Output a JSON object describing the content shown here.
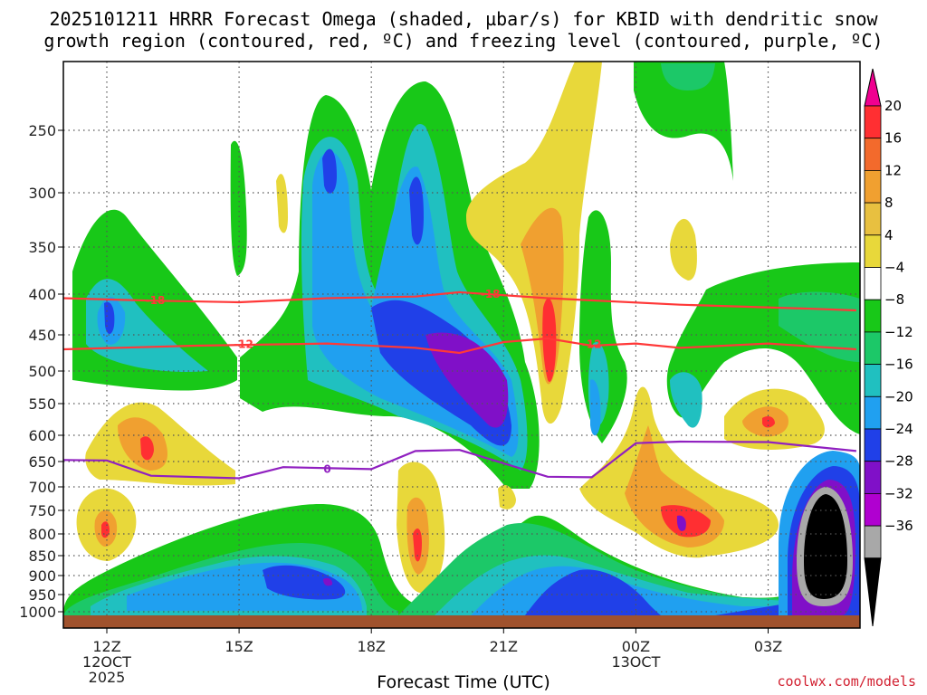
{
  "header": {
    "title_line1": "2025101211 HRRR Forecast Omega (shaded, µbar/s) for KBID with dendritic snow",
    "title_line2": "growth region (contoured, red, ºC) and freezing level (contoured, purple, ºC)"
  },
  "footer": {
    "credit": "coolwx.com/models"
  },
  "chart_data": {
    "type": "heatmap",
    "xlabel": "Forecast Time (UTC)",
    "ylabel": "",
    "x_ticks": [
      {
        "label": "12Z",
        "sub1": "12OCT",
        "sub2": "2025",
        "hour": 0
      },
      {
        "label": "15Z",
        "sub1": "",
        "sub2": "",
        "hour": 3
      },
      {
        "label": "18Z",
        "sub1": "",
        "sub2": "",
        "hour": 6
      },
      {
        "label": "21Z",
        "sub1": "",
        "sub2": "",
        "hour": 9
      },
      {
        "label": "00Z",
        "sub1": "13OCT",
        "sub2": "",
        "hour": 12
      },
      {
        "label": "03Z",
        "sub1": "",
        "sub2": "",
        "hour": 15
      }
    ],
    "x_range_hours": [
      -1,
      17
    ],
    "y_ticks": [
      250,
      300,
      350,
      400,
      450,
      500,
      550,
      600,
      650,
      700,
      750,
      800,
      850,
      900,
      950,
      1000
    ],
    "y_range_hpa": [
      200,
      1010
    ],
    "grid": true,
    "colorbar": {
      "labels": [
        "20",
        "16",
        "12",
        "8",
        "4",
        "−4",
        "−8",
        "−12",
        "−16",
        "−20",
        "−24",
        "−28",
        "−32",
        "−36"
      ],
      "colors": [
        "#ff2f32",
        "#f36a2c",
        "#f0a030",
        "#e8c040",
        "#e8d83a",
        "#ffffff",
        "#18c818",
        "#1cc868",
        "#20c0c0",
        "#20a0f0",
        "#2040e8",
        "#8010c8",
        "#b000d0",
        "#a8a8a8"
      ],
      "top_arrow_color": "#f00090",
      "bottom_arrow_color": "#000000"
    },
    "omega_regions": [
      {
        "name": "green",
        "color": "#18c818",
        "level": -4
      },
      {
        "name": "teal",
        "color": "#1cc868",
        "level": -8
      },
      {
        "name": "cyan",
        "color": "#20c0c0",
        "level": -12
      },
      {
        "name": "lightblue",
        "color": "#20a0f0",
        "level": -16
      },
      {
        "name": "blue",
        "color": "#2040e8",
        "level": -20
      },
      {
        "name": "purple",
        "color": "#8010c8",
        "level": -24
      },
      {
        "name": "yellow",
        "color": "#e8d83a",
        "level": 4
      },
      {
        "name": "orange",
        "color": "#f0a030",
        "level": 8
      },
      {
        "name": "red",
        "color": "#ff2f32",
        "level": 16
      }
    ],
    "contours": [
      {
        "name": "-18 C",
        "label": "-18",
        "color": "#ff3838",
        "points": [
          [
            -1,
            405
          ],
          [
            1,
            408
          ],
          [
            3,
            410
          ],
          [
            5,
            405
          ],
          [
            7,
            403
          ],
          [
            8,
            398
          ],
          [
            10,
            405
          ],
          [
            13,
            413
          ],
          [
            16,
            418
          ],
          [
            17,
            420
          ]
        ]
      },
      {
        "name": "-12 C",
        "label": "-12",
        "color": "#ff3838",
        "points": [
          [
            -1,
            470
          ],
          [
            2,
            465
          ],
          [
            5,
            462
          ],
          [
            7,
            468
          ],
          [
            8,
            475
          ],
          [
            9,
            460
          ],
          [
            10,
            455
          ],
          [
            11,
            465
          ],
          [
            12,
            462
          ],
          [
            13,
            468
          ],
          [
            15,
            462
          ],
          [
            17,
            470
          ]
        ]
      },
      {
        "name": "0 C",
        "label": "0",
        "color": "#9020c0",
        "points": [
          [
            -1,
            647
          ],
          [
            0,
            648
          ],
          [
            1,
            678
          ],
          [
            3,
            683
          ],
          [
            4,
            661
          ],
          [
            6,
            665
          ],
          [
            7,
            630
          ],
          [
            8,
            628
          ],
          [
            10,
            680
          ],
          [
            11,
            681
          ],
          [
            12,
            615
          ],
          [
            13,
            612
          ],
          [
            15,
            613
          ],
          [
            17,
            630
          ]
        ]
      }
    ]
  }
}
